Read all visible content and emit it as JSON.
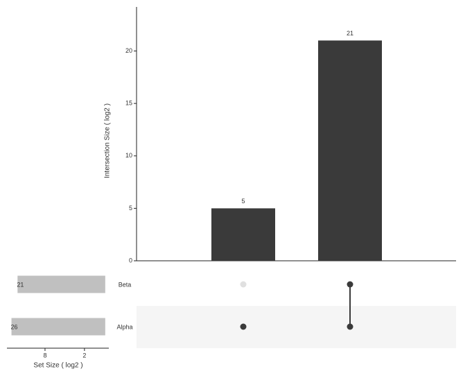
{
  "chart_data": {
    "type": "upset",
    "y_label": "Intersection Size ( log2 )",
    "ylim": [
      0,
      24.2
    ],
    "yticks": [
      0,
      5,
      10,
      15,
      20
    ],
    "intersections": {
      "values": [
        5,
        21
      ],
      "membership": [
        [
          false,
          true
        ],
        [
          true,
          true
        ]
      ],
      "color": "#3a3a3a"
    },
    "sets": {
      "names": [
        "Beta",
        "Alpha"
      ],
      "sizes": [
        21,
        26
      ],
      "color": "#c0c0c0"
    },
    "set_size_label": "Set Size ( log2 )",
    "x_log_base": 2,
    "xlim": [
      30.5,
      0.85
    ],
    "xticks": [
      8,
      2
    ],
    "dot_colors": {
      "in": "#3a3a3a",
      "out": "#e0e0e0"
    }
  }
}
